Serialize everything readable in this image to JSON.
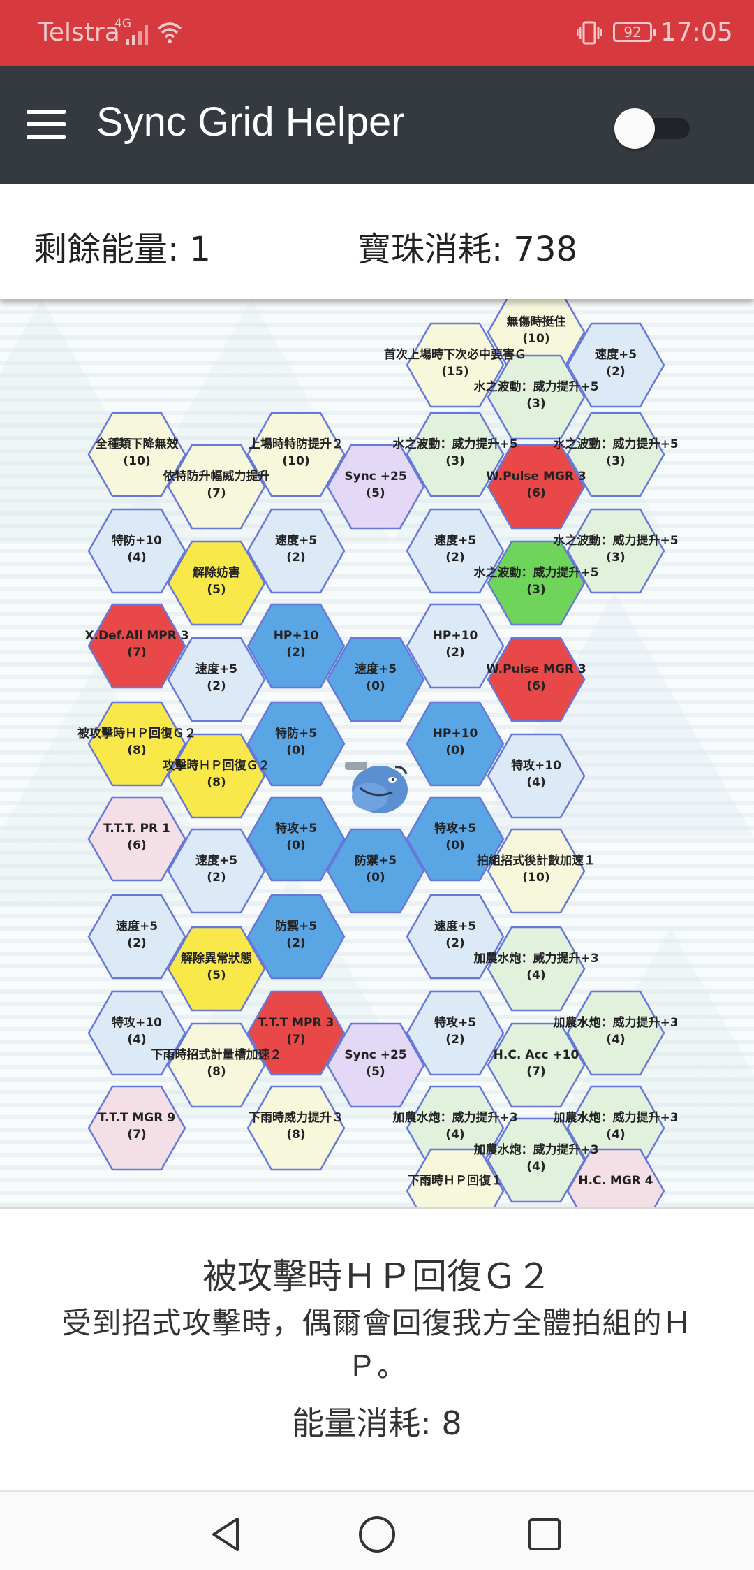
{
  "status": {
    "carrier": "Telstra",
    "network": "4G",
    "battery": "92",
    "time": "17:05"
  },
  "app": {
    "title": "Sync Grid Helper"
  },
  "info": {
    "energy": "剩餘能量: 1",
    "orbs": "寶珠消耗: 738"
  },
  "colors": {
    "status_bar": "#d63a3e",
    "app_bar": "#353a40",
    "blue": "#5aa5e4",
    "red": "#e84848",
    "yellow": "#f8e84a",
    "green": "#6fd45a",
    "purple": "#e3d8f6",
    "pink": "#f4dfe6",
    "light_blue": "#dceaf7",
    "light_yellow": "#f7f7dc",
    "light_green": "#e1f1dc",
    "hex_border": "#6678d8"
  },
  "tiles": [
    {
      "label": "無傷時挺住",
      "cost": "(10)",
      "color": "light_yellow"
    },
    {
      "label": "首次上場時下次必中要害Ｇ",
      "cost": "(15)",
      "color": "light_yellow"
    },
    {
      "label": "速度+5",
      "cost": "(2)",
      "color": "light_blue"
    },
    {
      "label": "水之波動：威力提升+5",
      "cost": "(3)",
      "color": "light_green"
    },
    {
      "label": "全種類下降無效",
      "cost": "(10)",
      "color": "light_yellow"
    },
    {
      "label": "上場時特防提升２",
      "cost": "(10)",
      "color": "light_yellow"
    },
    {
      "label": "水之波動：威力提升+5",
      "cost": "(3)",
      "color": "light_green"
    },
    {
      "label": "水之波動：威力提升+5",
      "cost": "(3)",
      "color": "light_green"
    },
    {
      "label": "依特防升幅威力提升",
      "cost": "(7)",
      "color": "light_yellow"
    },
    {
      "label": "Sync +25",
      "cost": "(5)",
      "color": "purple"
    },
    {
      "label": "W.Pulse MGR 3",
      "cost": "(6)",
      "color": "red"
    },
    {
      "label": "特防+10",
      "cost": "(4)",
      "color": "light_blue"
    },
    {
      "label": "速度+5",
      "cost": "(2)",
      "color": "light_blue"
    },
    {
      "label": "速度+5",
      "cost": "(2)",
      "color": "light_blue"
    },
    {
      "label": "水之波動：威力提升+5",
      "cost": "(3)",
      "color": "light_green"
    },
    {
      "label": "解除妨害",
      "cost": "(5)",
      "color": "yellow"
    },
    {
      "label": "水之波動：威力提升+5",
      "cost": "(3)",
      "color": "green"
    },
    {
      "label": "X.Def.All MPR 3",
      "cost": "(7)",
      "color": "red"
    },
    {
      "label": "HP+10",
      "cost": "(2)",
      "color": "blue"
    },
    {
      "label": "HP+10",
      "cost": "(2)",
      "color": "light_blue"
    },
    {
      "label": "速度+5",
      "cost": "(2)",
      "color": "light_blue"
    },
    {
      "label": "速度+5",
      "cost": "(0)",
      "color": "blue"
    },
    {
      "label": "W.Pulse MGR 3",
      "cost": "(6)",
      "color": "red"
    },
    {
      "label": "被攻擊時ＨＰ回復Ｇ２",
      "cost": "(8)",
      "color": "yellow"
    },
    {
      "label": "特防+5",
      "cost": "(0)",
      "color": "blue"
    },
    {
      "label": "HP+10",
      "cost": "(0)",
      "color": "blue"
    },
    {
      "label": "攻擊時ＨＰ回復Ｇ２",
      "cost": "(8)",
      "color": "yellow"
    },
    {
      "label": "特攻+10",
      "cost": "(4)",
      "color": "light_blue"
    },
    {
      "label": "T.T.T. PR 1",
      "cost": "(6)",
      "color": "pink"
    },
    {
      "label": "特攻+5",
      "cost": "(0)",
      "color": "blue"
    },
    {
      "label": "特攻+5",
      "cost": "(0)",
      "color": "blue"
    },
    {
      "label": "速度+5",
      "cost": "(2)",
      "color": "light_blue"
    },
    {
      "label": "防禦+5",
      "cost": "(0)",
      "color": "blue"
    },
    {
      "label": "拍組招式後計數加速１",
      "cost": "(10)",
      "color": "light_yellow"
    },
    {
      "label": "速度+5",
      "cost": "(2)",
      "color": "light_blue"
    },
    {
      "label": "防禦+5",
      "cost": "(2)",
      "color": "blue"
    },
    {
      "label": "速度+5",
      "cost": "(2)",
      "color": "light_blue"
    },
    {
      "label": "解除異常狀態",
      "cost": "(5)",
      "color": "yellow"
    },
    {
      "label": "加農水炮：威力提升+3",
      "cost": "(4)",
      "color": "light_green"
    },
    {
      "label": "特攻+10",
      "cost": "(4)",
      "color": "light_blue"
    },
    {
      "label": "T.T.T MPR 3",
      "cost": "(7)",
      "color": "red"
    },
    {
      "label": "特攻+5",
      "cost": "(2)",
      "color": "light_blue"
    },
    {
      "label": "加農水炮：威力提升+3",
      "cost": "(4)",
      "color": "light_green"
    },
    {
      "label": "下雨時招式計量槽加速２",
      "cost": "(8)",
      "color": "light_yellow"
    },
    {
      "label": "Sync +25",
      "cost": "(5)",
      "color": "purple"
    },
    {
      "label": "H.C. Acc +10",
      "cost": "(7)",
      "color": "light_green"
    },
    {
      "label": "T.T.T MGR 9",
      "cost": "(7)",
      "color": "pink"
    },
    {
      "label": "下雨時威力提升３",
      "cost": "(8)",
      "color": "light_yellow"
    },
    {
      "label": "加農水炮：威力提升+3",
      "cost": "(4)",
      "color": "light_green"
    },
    {
      "label": "加農水炮：威力提升+3",
      "cost": "(4)",
      "color": "light_green"
    },
    {
      "label": "加農水炮：威力提升+3",
      "cost": "(4)",
      "color": "light_green"
    },
    {
      "label": "下雨時ＨＰ回復１",
      "cost": "",
      "color": "light_yellow"
    },
    {
      "label": "H.C. MGR 4",
      "cost": "",
      "color": "pink"
    }
  ],
  "detail": {
    "title": "被攻擊時ＨＰ回復Ｇ２",
    "description": "受到招式攻擊時，偶爾會回復我方全體拍組的ＨＰ。",
    "cost": "能量消耗: 8"
  }
}
